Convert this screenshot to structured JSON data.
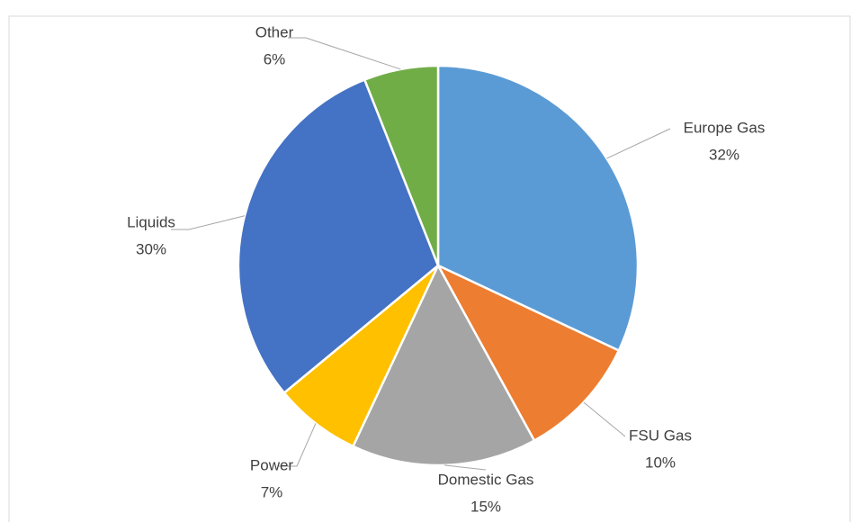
{
  "chart_data": {
    "type": "pie",
    "categories": [
      "Europe Gas",
      "FSU Gas",
      "Domestic Gas",
      "Power",
      "Liquids",
      "Other"
    ],
    "values": [
      32,
      10,
      15,
      7,
      30,
      6
    ],
    "value_labels": [
      "32%",
      "10%",
      "15%",
      "7%",
      "30%",
      "6%"
    ],
    "colors": [
      "#5b9bd5",
      "#ed7d31",
      "#a5a5a5",
      "#ffc000",
      "#4472c4",
      "#70ad47"
    ]
  }
}
